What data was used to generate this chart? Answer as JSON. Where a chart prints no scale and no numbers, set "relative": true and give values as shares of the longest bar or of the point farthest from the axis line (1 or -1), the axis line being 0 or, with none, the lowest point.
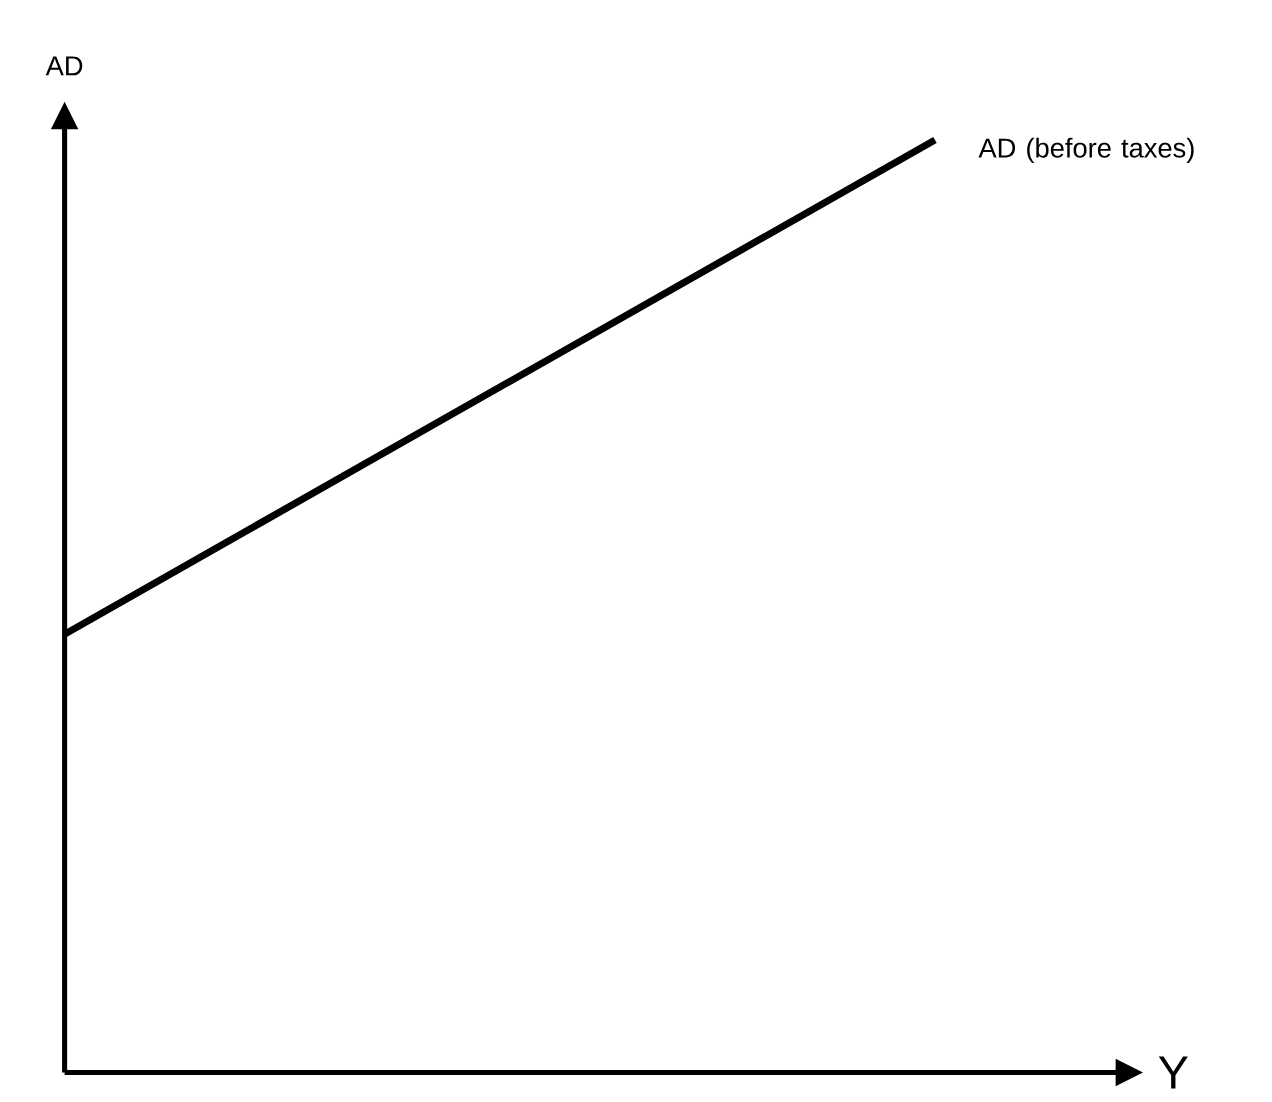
{
  "chart_data": {
    "type": "line",
    "xlabel": "Y",
    "ylabel": "AD",
    "categories": [
      null,
      null
    ],
    "relative": true,
    "marker": "none",
    "series": [
      {
        "name": "AD (before taxes)",
        "color": "#000000",
        "values": [
          0.47,
          1
        ]
      }
    ]
  }
}
